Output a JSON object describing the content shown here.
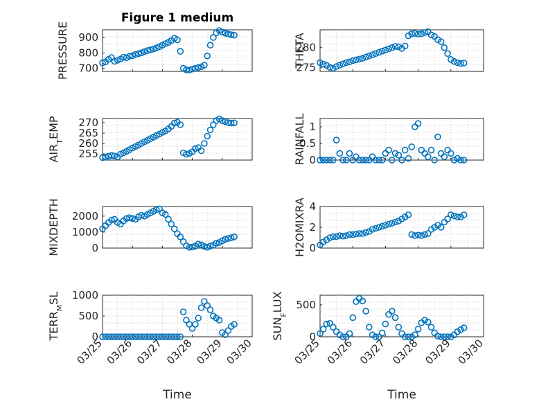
{
  "chart_data": [
    {
      "type": "scatter",
      "title": "Figure 1 medium",
      "ylabel": "PRESSURE",
      "xlim": [
        0,
        5
      ],
      "ylim": [
        680,
        950
      ],
      "yticks": [
        700,
        800,
        900
      ],
      "ytick_labels": [
        "700",
        "800",
        "900"
      ],
      "x": [
        0.0,
        0.1,
        0.2,
        0.3,
        0.4,
        0.5,
        0.6,
        0.7,
        0.8,
        0.9,
        1.0,
        1.1,
        1.2,
        1.3,
        1.4,
        1.5,
        1.6,
        1.7,
        1.8,
        1.9,
        2.0,
        2.1,
        2.2,
        2.3,
        2.4,
        2.5,
        2.6,
        2.7,
        2.8,
        2.9,
        3.0,
        3.1,
        3.2,
        3.3,
        3.4,
        3.5,
        3.6,
        3.7,
        3.8,
        3.9,
        4.0,
        4.1,
        4.2,
        4.3,
        4.4
      ],
      "values": [
        735,
        742,
        758,
        770,
        745,
        752,
        760,
        772,
        768,
        778,
        782,
        790,
        795,
        800,
        808,
        815,
        820,
        825,
        832,
        840,
        850,
        860,
        868,
        880,
        895,
        885,
        810,
        700,
        690,
        688,
        695,
        700,
        705,
        710,
        720,
        780,
        850,
        900,
        930,
        945,
        935,
        928,
        922,
        918,
        915
      ]
    },
    {
      "type": "scatter",
      "title": "",
      "ylabel": "THETA",
      "xlim": [
        0,
        5
      ],
      "ylim": [
        274,
        284.5
      ],
      "yticks": [
        275,
        280
      ],
      "ytick_labels": [
        "275",
        "280"
      ],
      "x": [
        0.0,
        0.1,
        0.2,
        0.3,
        0.4,
        0.5,
        0.6,
        0.7,
        0.8,
        0.9,
        1.0,
        1.1,
        1.2,
        1.3,
        1.4,
        1.5,
        1.6,
        1.7,
        1.8,
        1.9,
        2.0,
        2.1,
        2.2,
        2.3,
        2.4,
        2.5,
        2.6,
        2.7,
        2.8,
        2.9,
        3.0,
        3.1,
        3.2,
        3.3,
        3.4,
        3.5,
        3.6,
        3.7,
        3.8,
        3.9,
        4.0,
        4.1,
        4.2,
        4.3,
        4.4
      ],
      "values": [
        276.2,
        275.8,
        275.5,
        275.0,
        274.8,
        275.2,
        275.6,
        275.9,
        276.2,
        276.4,
        276.7,
        276.9,
        277.1,
        277.3,
        277.6,
        277.9,
        278.2,
        278.5,
        278.8,
        279.1,
        279.4,
        279.7,
        280.0,
        280.3,
        280.2,
        279.8,
        280.4,
        283.0,
        283.5,
        283.6,
        283.4,
        283.5,
        283.8,
        284.0,
        283.2,
        282.8,
        282.0,
        281.5,
        280.0,
        278.5,
        277.0,
        276.5,
        276.2,
        276.0,
        276.1
      ]
    },
    {
      "type": "scatter",
      "title": "",
      "ylabel": "AIR_TEMP",
      "ylabel_main": "AIR",
      "ylabel_sub": "T",
      "ylabel_rest": "EMP",
      "xlim": [
        0,
        5
      ],
      "ylim": [
        252,
        272
      ],
      "yticks": [
        255,
        260,
        265,
        270
      ],
      "ytick_labels": [
        "255",
        "260",
        "265",
        "270"
      ],
      "x": [
        0.0,
        0.1,
        0.2,
        0.3,
        0.4,
        0.5,
        0.6,
        0.7,
        0.8,
        0.9,
        1.0,
        1.1,
        1.2,
        1.3,
        1.4,
        1.5,
        1.6,
        1.7,
        1.8,
        1.9,
        2.0,
        2.1,
        2.2,
        2.3,
        2.4,
        2.5,
        2.6,
        2.7,
        2.8,
        2.9,
        3.0,
        3.1,
        3.2,
        3.3,
        3.4,
        3.5,
        3.6,
        3.7,
        3.8,
        3.9,
        4.0,
        4.1,
        4.2,
        4.3,
        4.4
      ],
      "values": [
        253.2,
        253.5,
        253.9,
        254.2,
        254.0,
        253.5,
        254.8,
        255.5,
        256.2,
        257.0,
        257.8,
        258.5,
        259.2,
        260.0,
        260.8,
        261.5,
        262.3,
        263.0,
        263.8,
        264.5,
        265.3,
        266.0,
        267.0,
        268.2,
        269.8,
        270.2,
        269.0,
        255.5,
        254.8,
        255.2,
        256.0,
        257.5,
        258.0,
        256.5,
        260.0,
        263.5,
        266.5,
        269.0,
        271.0,
        271.8,
        271.0,
        270.5,
        270.0,
        269.8,
        269.9
      ]
    },
    {
      "type": "scatter",
      "title": "",
      "ylabel": "RAINFALL",
      "xlim": [
        0,
        5
      ],
      "ylim": [
        0,
        1.25
      ],
      "yticks": [
        0,
        0.5,
        1
      ],
      "ytick_labels": [
        "0",
        "0.5",
        "1"
      ],
      "x": [
        0.0,
        0.1,
        0.2,
        0.3,
        0.4,
        0.5,
        0.6,
        0.7,
        0.8,
        0.9,
        1.0,
        1.1,
        1.2,
        1.3,
        1.4,
        1.5,
        1.6,
        1.7,
        1.8,
        1.9,
        2.0,
        2.1,
        2.2,
        2.3,
        2.4,
        2.5,
        2.6,
        2.7,
        2.8,
        2.9,
        3.0,
        3.1,
        3.2,
        3.3,
        3.4,
        3.5,
        3.6,
        3.7,
        3.8,
        3.9,
        4.0,
        4.1,
        4.2,
        4.3,
        4.4
      ],
      "values": [
        0,
        0,
        0,
        0,
        0,
        0.6,
        0.2,
        0,
        0,
        0.2,
        0,
        0.1,
        0,
        0,
        0,
        0,
        0.1,
        0,
        0,
        0,
        0.2,
        0.3,
        0,
        0.2,
        0.15,
        0,
        0.3,
        0.05,
        0.4,
        1.0,
        1.1,
        0.3,
        0.2,
        0.1,
        0.3,
        0,
        0.7,
        0.2,
        0.1,
        0.3,
        0.2,
        0,
        0.05,
        0,
        0
      ]
    },
    {
      "type": "scatter",
      "title": "",
      "ylabel": "MIXDEPTH",
      "xlim": [
        0,
        5
      ],
      "ylim": [
        0,
        2600
      ],
      "yticks": [
        0,
        1000,
        2000
      ],
      "ytick_labels": [
        "0",
        "1000",
        "2000"
      ],
      "x": [
        0.0,
        0.1,
        0.2,
        0.3,
        0.4,
        0.5,
        0.6,
        0.7,
        0.8,
        0.9,
        1.0,
        1.1,
        1.2,
        1.3,
        1.4,
        1.5,
        1.6,
        1.7,
        1.8,
        1.9,
        2.0,
        2.1,
        2.2,
        2.3,
        2.4,
        2.5,
        2.6,
        2.7,
        2.8,
        2.9,
        3.0,
        3.1,
        3.2,
        3.3,
        3.4,
        3.5,
        3.6,
        3.7,
        3.8,
        3.9,
        4.0,
        4.1,
        4.2,
        4.3,
        4.4
      ],
      "values": [
        1200,
        1400,
        1600,
        1750,
        1800,
        1600,
        1500,
        1700,
        1850,
        1900,
        1850,
        1800,
        1950,
        2050,
        2000,
        2100,
        2200,
        2300,
        2400,
        2450,
        2200,
        2100,
        1800,
        1500,
        1200,
        900,
        700,
        400,
        150,
        50,
        60,
        120,
        250,
        200,
        100,
        50,
        120,
        180,
        300,
        350,
        450,
        550,
        600,
        650,
        700
      ]
    },
    {
      "type": "scatter",
      "title": "",
      "ylabel": "H2OMIXRA",
      "xlim": [
        0,
        5
      ],
      "ylim": [
        0,
        4
      ],
      "yticks": [
        0,
        2,
        4
      ],
      "ytick_labels": [
        "0",
        "2",
        "4"
      ],
      "x": [
        0.0,
        0.1,
        0.2,
        0.3,
        0.4,
        0.5,
        0.6,
        0.7,
        0.8,
        0.9,
        1.0,
        1.1,
        1.2,
        1.3,
        1.4,
        1.5,
        1.6,
        1.7,
        1.8,
        1.9,
        2.0,
        2.1,
        2.2,
        2.3,
        2.4,
        2.5,
        2.6,
        2.7,
        2.8,
        2.9,
        3.0,
        3.1,
        3.2,
        3.3,
        3.4,
        3.5,
        3.6,
        3.7,
        3.8,
        3.9,
        4.0,
        4.1,
        4.2,
        4.3,
        4.4
      ],
      "values": [
        0.3,
        0.6,
        0.8,
        1.0,
        1.1,
        1.1,
        1.2,
        1.15,
        1.2,
        1.3,
        1.3,
        1.35,
        1.4,
        1.4,
        1.5,
        1.6,
        1.8,
        1.9,
        2.0,
        2.1,
        2.2,
        2.3,
        2.4,
        2.5,
        2.6,
        2.8,
        3.0,
        3.2,
        1.3,
        1.2,
        1.25,
        1.2,
        1.3,
        1.4,
        1.8,
        2.0,
        2.2,
        2.0,
        2.5,
        2.8,
        3.2,
        3.1,
        3.0,
        3.0,
        3.2
      ]
    },
    {
      "type": "scatter",
      "title": "",
      "ylabel": "TERR_MSL",
      "ylabel_main": "TERR",
      "ylabel_sub": "M",
      "ylabel_rest": "SL",
      "xlabel": "Time",
      "xlim": [
        0,
        5
      ],
      "ylim": [
        0,
        1000
      ],
      "yticks": [
        0,
        500,
        1000
      ],
      "ytick_labels": [
        "0",
        "500",
        "1000"
      ],
      "xticks": [
        0,
        1,
        2,
        3,
        4,
        5
      ],
      "xtick_labels": [
        "03/25",
        "03/26",
        "03/27",
        "03/28",
        "03/29",
        "03/30"
      ],
      "x": [
        0.0,
        0.1,
        0.2,
        0.3,
        0.4,
        0.5,
        0.6,
        0.7,
        0.8,
        0.9,
        1.0,
        1.1,
        1.2,
        1.3,
        1.4,
        1.5,
        1.6,
        1.7,
        1.8,
        1.9,
        2.0,
        2.1,
        2.2,
        2.3,
        2.4,
        2.5,
        2.6,
        2.7,
        2.8,
        2.9,
        3.0,
        3.1,
        3.2,
        3.3,
        3.4,
        3.5,
        3.6,
        3.7,
        3.8,
        3.9,
        4.0,
        4.1,
        4.2,
        4.3,
        4.4
      ],
      "values": [
        0,
        0,
        0,
        0,
        0,
        0,
        0,
        0,
        0,
        0,
        0,
        0,
        0,
        0,
        0,
        0,
        0,
        0,
        0,
        0,
        0,
        0,
        0,
        0,
        0,
        0,
        0,
        600,
        400,
        300,
        200,
        300,
        450,
        700,
        850,
        750,
        650,
        500,
        450,
        400,
        100,
        50,
        150,
        250,
        300
      ]
    },
    {
      "type": "scatter",
      "title": "",
      "ylabel": "SUN_FLUX",
      "ylabel_main": "SUN",
      "ylabel_sub": "F",
      "ylabel_rest": "LUX",
      "xlabel": "Time",
      "xlim": [
        0,
        5
      ],
      "ylim": [
        0,
        650
      ],
      "yticks": [
        0,
        500
      ],
      "ytick_labels": [
        "0",
        "500"
      ],
      "xticks": [
        0,
        1,
        2,
        3,
        4,
        5
      ],
      "xtick_labels": [
        "03/25",
        "03/26",
        "03/27",
        "03/28",
        "03/29",
        "03/30"
      ],
      "x": [
        0.0,
        0.1,
        0.2,
        0.3,
        0.4,
        0.5,
        0.6,
        0.7,
        0.8,
        0.9,
        1.0,
        1.1,
        1.2,
        1.3,
        1.4,
        1.5,
        1.6,
        1.7,
        1.8,
        1.9,
        2.0,
        2.1,
        2.2,
        2.3,
        2.4,
        2.5,
        2.6,
        2.7,
        2.8,
        2.9,
        3.0,
        3.1,
        3.2,
        3.3,
        3.4,
        3.5,
        3.6,
        3.7,
        3.8,
        3.9,
        4.0,
        4.1,
        4.2,
        4.3,
        4.4
      ],
      "values": [
        50,
        120,
        200,
        210,
        150,
        80,
        30,
        0,
        0,
        50,
        300,
        550,
        600,
        560,
        400,
        150,
        30,
        0,
        0,
        60,
        200,
        350,
        400,
        300,
        150,
        50,
        0,
        0,
        0,
        30,
        120,
        220,
        260,
        230,
        150,
        60,
        10,
        0,
        0,
        0,
        0,
        30,
        80,
        110,
        140
      ]
    }
  ]
}
